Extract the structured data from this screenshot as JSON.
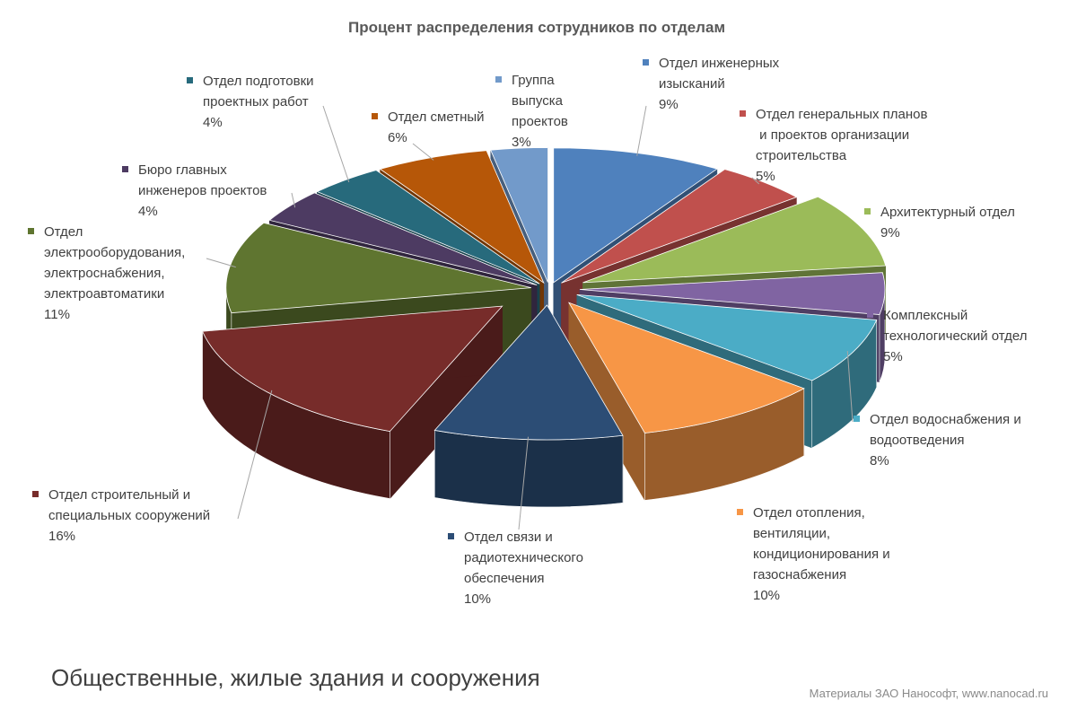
{
  "chart_data": {
    "type": "pie",
    "title": "Процент распределения сотрудников по отделам",
    "categories": [
      "Отдел инженерных\nизысканий",
      "Отдел генеральных планов\n и  проектов организации\nстроительства",
      "Архитектурный отдел",
      "Комплексный\nтехнологический отдел",
      "Отдел водоснабжения и\nводоотведения",
      "Отдел отопления,\nвентиляции,\nкондиционирования и\nгазоснабжения",
      "Отдел связи и\nрадиотехнического\nобеспечения",
      "Отдел строительный и\nспециальных сооружений",
      "Отдел\nэлектрооборудования,\nэлектроснабжения,\nэлектроавтоматики",
      "Бюро главных\nинженеров проектов",
      "Отдел подготовки\nпроектных работ",
      "Отдел сметный",
      "Группа\nвыпуска\nпроектов"
    ],
    "values": [
      9,
      5,
      9,
      5,
      8,
      10,
      10,
      16,
      11,
      4,
      4,
      6,
      3
    ],
    "value_labels": [
      "9%",
      "5%",
      "9%",
      "5%",
      "8%",
      "10%",
      "10%",
      "16%",
      "11%",
      "4%",
      "4%",
      "6%",
      "3%"
    ],
    "colors": [
      "#4f81bd",
      "#c0504d",
      "#9bbb59",
      "#8064a2",
      "#4bacc6",
      "#f79646",
      "#2c4d75",
      "#772c2a",
      "#5f7530",
      "#4d3b62",
      "#276a7c",
      "#b65708",
      "#729aca"
    ]
  },
  "caption": "Общественные, жилые здания и сооружения",
  "credit": "Материалы ЗАО Нанософт, www.nanocad.ru"
}
